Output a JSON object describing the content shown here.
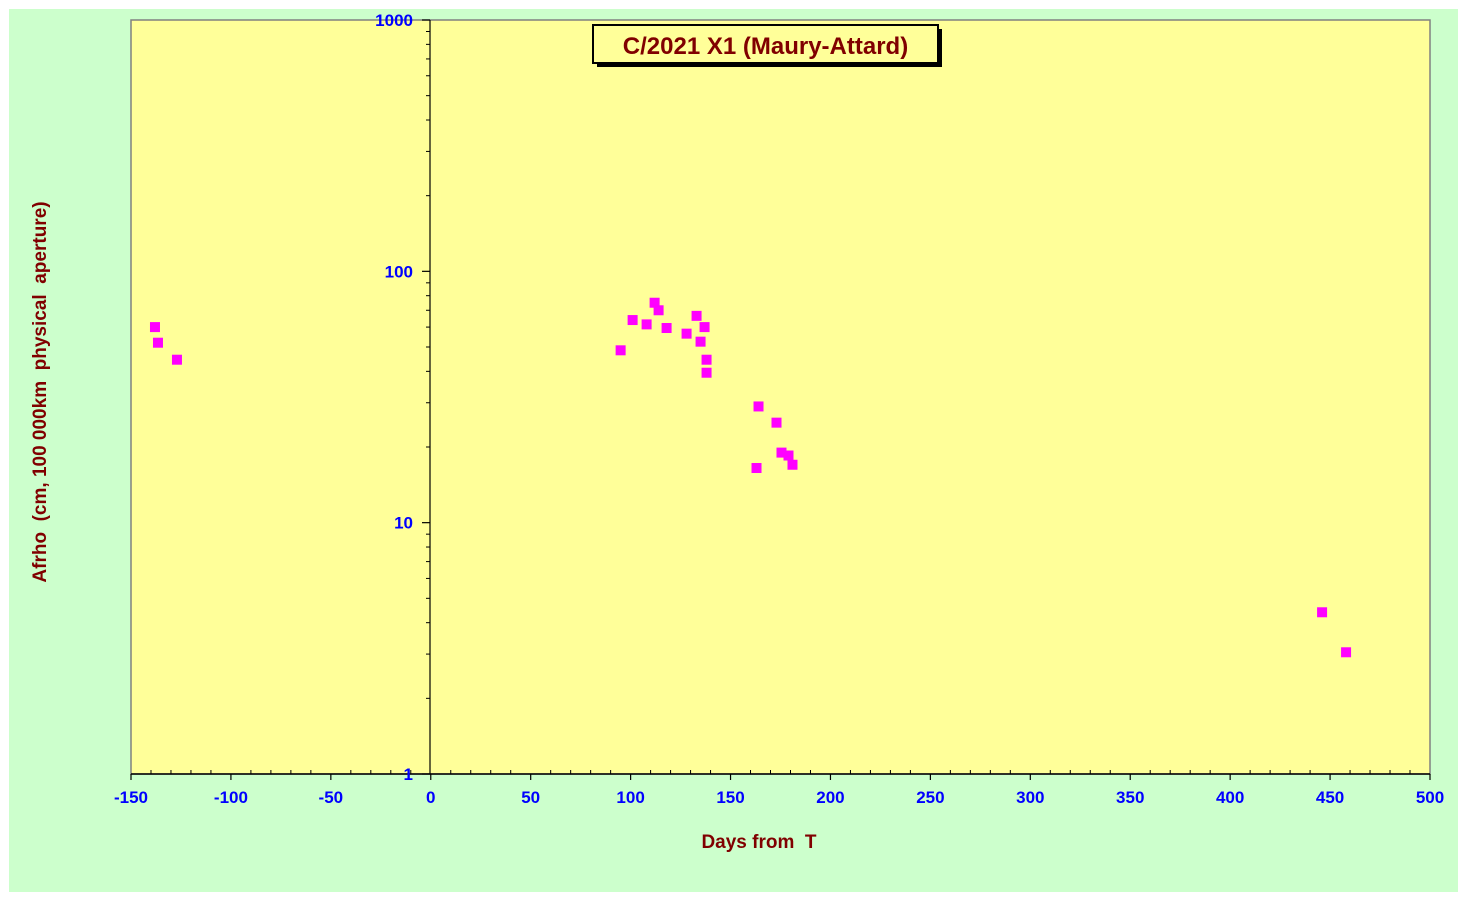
{
  "colors": {
    "outer_background": "#ccffcc",
    "plot_background": "#ffff99",
    "tick_label": "#0000ff",
    "title_text": "#800000",
    "axis_title": "#800000",
    "marker": "#ff00ff",
    "axis_line": "#000000",
    "plot_border": "#808080"
  },
  "chart_data": {
    "type": "scatter",
    "title": "C/2021 X1 (Maury-Attard)",
    "xlabel": "Days from  T",
    "ylabel": "Afrho  (cm, 100 000km  physical  aperture)",
    "xlim": [
      -150,
      500
    ],
    "ylim": [
      1,
      1000
    ],
    "yscale": "log",
    "grid": false,
    "x_ticks": [
      -150,
      -100,
      -50,
      0,
      50,
      100,
      150,
      200,
      250,
      300,
      350,
      400,
      450,
      500
    ],
    "x_tick_labels": [
      "-150",
      "-100",
      "-50",
      "0",
      "50",
      "100",
      "150",
      "200",
      "250",
      "300",
      "350",
      "400",
      "450",
      "500"
    ],
    "y_ticks": [
      1,
      10,
      100,
      1000
    ],
    "y_tick_labels": [
      "1",
      "10",
      "100",
      "1000"
    ],
    "marker": "square",
    "series": [
      {
        "points": [
          {
            "x": -138,
            "y": 60
          },
          {
            "x": -136.5,
            "y": 52
          },
          {
            "x": -127,
            "y": 44.5
          },
          {
            "x": 95,
            "y": 48.5
          },
          {
            "x": 101,
            "y": 64
          },
          {
            "x": 108,
            "y": 61.5
          },
          {
            "x": 112,
            "y": 75
          },
          {
            "x": 114,
            "y": 70
          },
          {
            "x": 118,
            "y": 59.5
          },
          {
            "x": 128,
            "y": 56.5
          },
          {
            "x": 133,
            "y": 66.5
          },
          {
            "x": 135,
            "y": 52.5
          },
          {
            "x": 137,
            "y": 60
          },
          {
            "x": 138,
            "y": 44.5
          },
          {
            "x": 138,
            "y": 39.5
          },
          {
            "x": 163,
            "y": 16.5
          },
          {
            "x": 164,
            "y": 29
          },
          {
            "x": 173,
            "y": 25
          },
          {
            "x": 175.5,
            "y": 19
          },
          {
            "x": 179,
            "y": 18.5
          },
          {
            "x": 181,
            "y": 17
          },
          {
            "x": 446,
            "y": 4.4
          },
          {
            "x": 458,
            "y": 3.05
          }
        ]
      }
    ]
  }
}
